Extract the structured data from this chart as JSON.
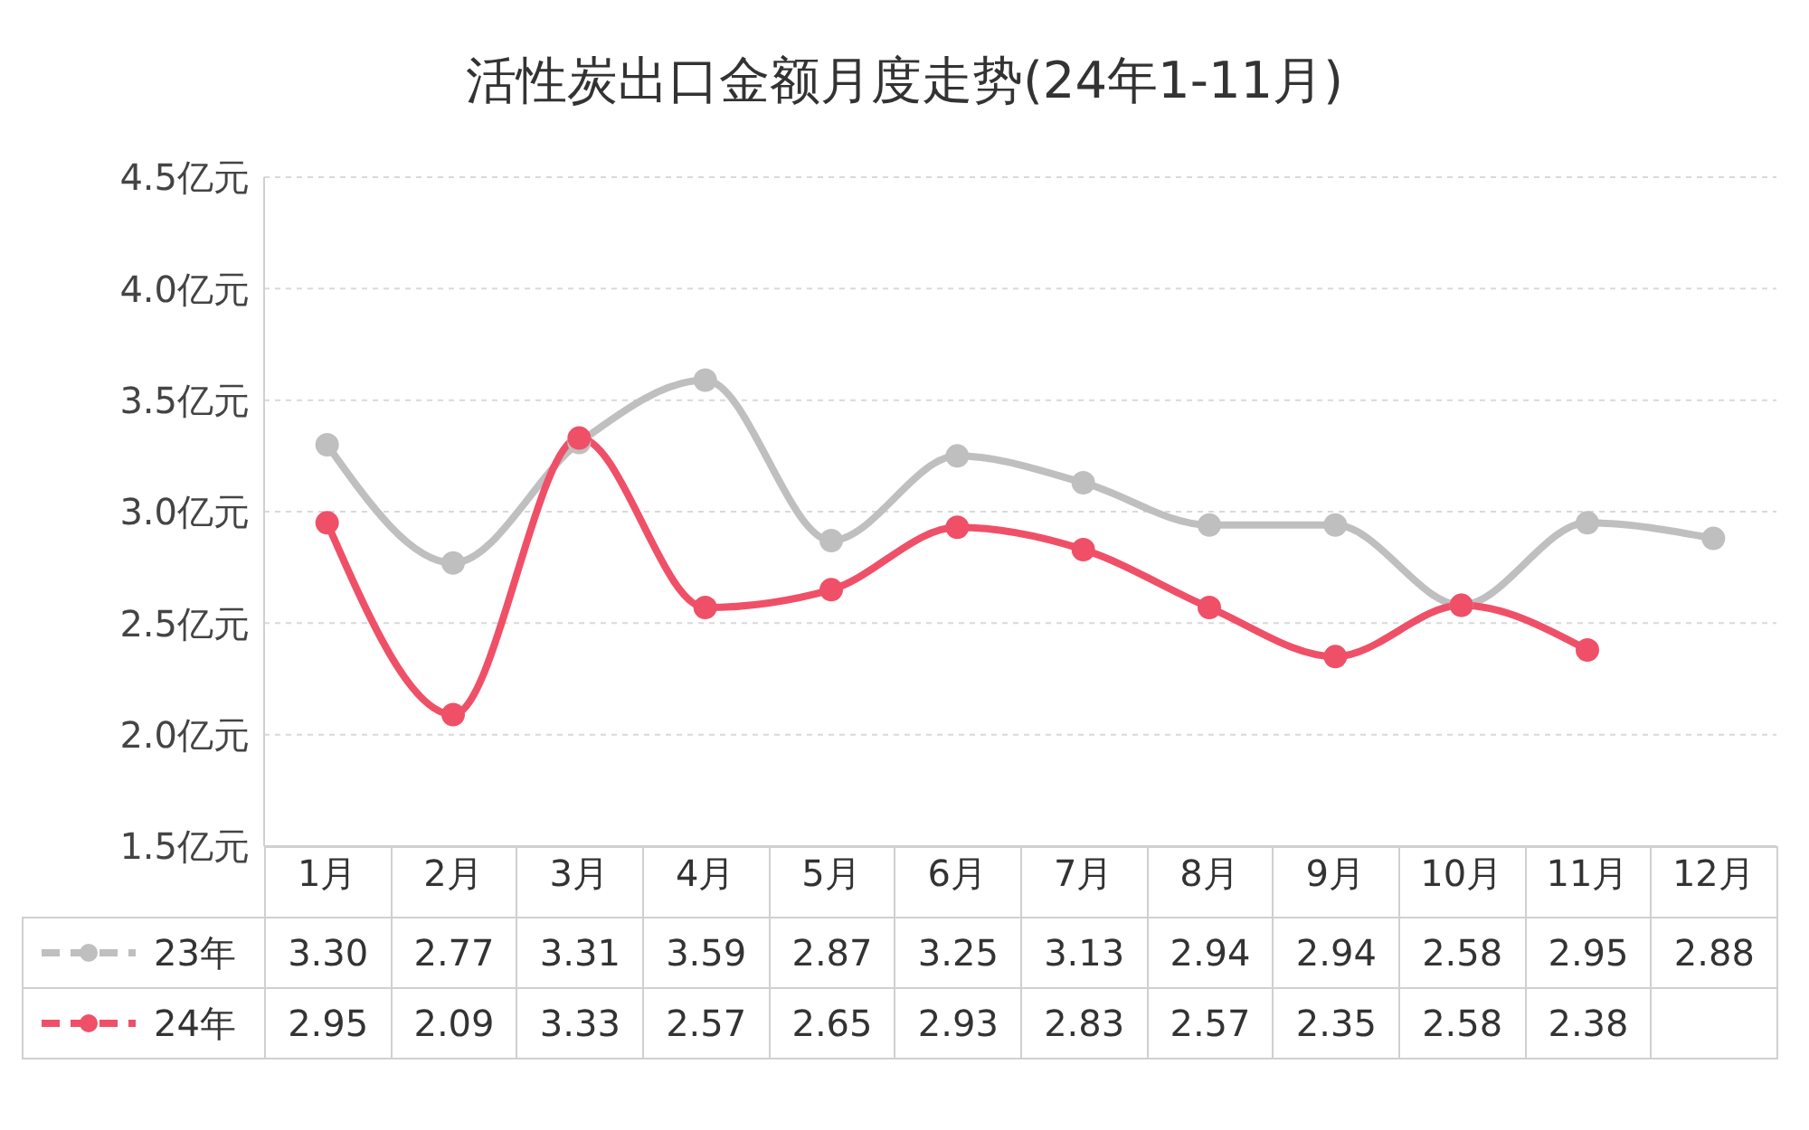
{
  "chart_data": {
    "type": "line",
    "title": "活性炭出口金额月度走势(24年1-11月)",
    "categories": [
      "1月",
      "2月",
      "3月",
      "4月",
      "5月",
      "6月",
      "7月",
      "8月",
      "9月",
      "10月",
      "11月",
      "12月"
    ],
    "series": [
      {
        "name": "23年",
        "color": "#bfbfbf",
        "values": [
          3.3,
          2.77,
          3.31,
          3.59,
          2.87,
          3.25,
          3.13,
          2.94,
          2.94,
          2.58,
          2.95,
          2.88
        ],
        "value_labels": [
          "3.30",
          "2.77",
          "3.31",
          "3.59",
          "2.87",
          "3.25",
          "3.13",
          "2.94",
          "2.94",
          "2.58",
          "2.95",
          "2.88"
        ]
      },
      {
        "name": "24年",
        "color": "#ef5068",
        "values": [
          2.95,
          2.09,
          3.33,
          2.57,
          2.65,
          2.93,
          2.83,
          2.57,
          2.35,
          2.58,
          2.38,
          null
        ],
        "value_labels": [
          "2.95",
          "2.09",
          "3.33",
          "2.57",
          "2.65",
          "2.93",
          "2.83",
          "2.57",
          "2.35",
          "2.58",
          "2.38",
          null
        ]
      }
    ],
    "ylim": [
      1.5,
      4.5
    ],
    "yticks": [
      {
        "value": 1.5,
        "label": "1.5亿元"
      },
      {
        "value": 2.0,
        "label": "2.0亿元"
      },
      {
        "value": 2.5,
        "label": "2.5亿元"
      },
      {
        "value": 3.0,
        "label": "3.0亿元"
      },
      {
        "value": 3.5,
        "label": "3.5亿元"
      },
      {
        "value": 4.0,
        "label": "4.0亿元"
      },
      {
        "value": 4.5,
        "label": "4.5亿元"
      }
    ],
    "grid": "y",
    "marker": "circle",
    "line_style": "solid",
    "legend": "bottom"
  }
}
